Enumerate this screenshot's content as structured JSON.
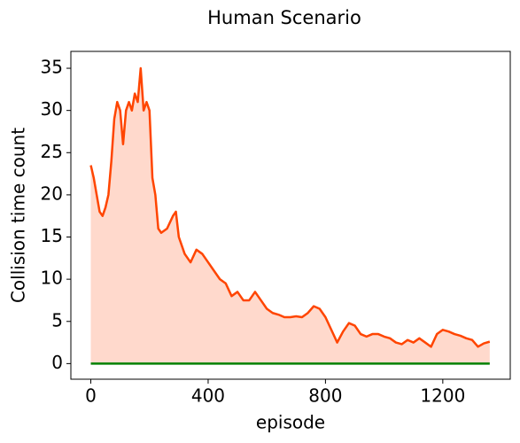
{
  "chart_data": {
    "type": "line",
    "title": "Human Scenario",
    "x_label": "episode",
    "y_label": "Collision time count",
    "series": [
      {
        "color": "#ff4500",
        "fill_color": "#ffd9cc",
        "x": [
          0,
          10,
          20,
          30,
          40,
          50,
          60,
          70,
          80,
          90,
          100,
          110,
          120,
          130,
          140,
          150,
          160,
          170,
          180,
          190,
          200,
          210,
          220,
          230,
          240,
          260,
          280,
          290,
          300,
          320,
          340,
          360,
          380,
          400,
          420,
          440,
          460,
          480,
          500,
          520,
          540,
          560,
          580,
          600,
          620,
          640,
          660,
          680,
          700,
          720,
          740,
          760,
          780,
          800,
          820,
          840,
          860,
          880,
          900,
          920,
          940,
          960,
          980,
          1000,
          1020,
          1040,
          1060,
          1080,
          1100,
          1120,
          1140,
          1160,
          1180,
          1200,
          1220,
          1240,
          1260,
          1280,
          1300,
          1320,
          1340,
          1360
        ],
        "values": [
          23.5,
          22,
          20,
          18,
          17.5,
          18.5,
          20,
          24,
          29,
          31,
          30,
          26,
          30,
          31,
          30,
          32,
          31,
          35,
          30,
          31,
          30,
          22,
          20,
          16,
          15.5,
          16,
          17.5,
          18,
          15,
          13,
          12,
          13.5,
          13,
          12,
          11,
          10,
          9.5,
          8,
          8.5,
          7.5,
          7.5,
          8.5,
          7.5,
          6.5,
          6,
          5.8,
          5.5,
          5.5,
          5.6,
          5.5,
          6,
          6.8,
          6.5,
          5.5,
          4,
          2.5,
          3.8,
          4.8,
          4.5,
          3.5,
          3.2,
          3.5,
          3.5,
          3.2,
          3,
          2.5,
          2.3,
          2.8,
          2.5,
          3,
          2.5,
          2,
          3.5,
          4,
          3.8,
          3.5,
          3.3,
          3,
          2.8,
          2,
          2.4,
          2.6
        ]
      },
      {
        "color": "#008000",
        "x": [
          0,
          1360
        ],
        "values": [
          0,
          0
        ]
      }
    ],
    "xlim": [
      -68,
      1430
    ],
    "xticks": [
      0,
      400,
      800,
      1200
    ],
    "ylim": [
      -1.85,
      37
    ],
    "yticks": [
      0,
      5,
      10,
      15,
      20,
      25,
      30,
      35
    ]
  }
}
